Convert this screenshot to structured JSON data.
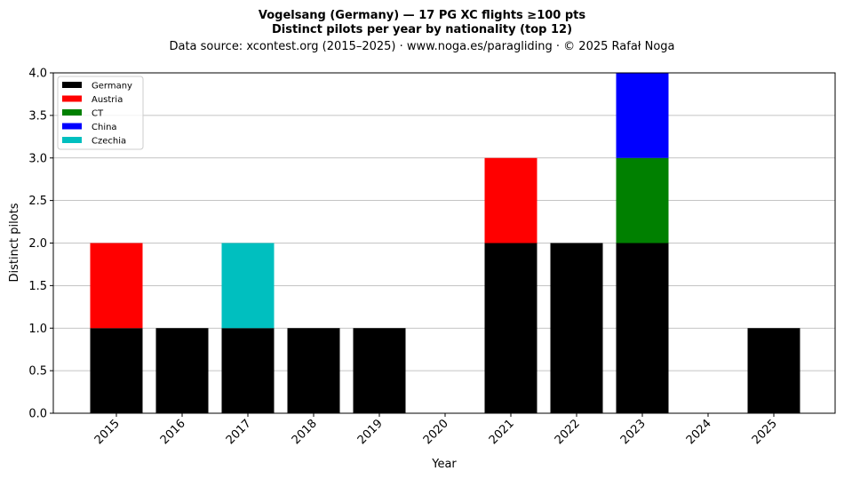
{
  "chart_data": {
    "type": "bar",
    "title_line1": "Vogelsang (Germany)  —  17 PG XC flights ≥100 pts",
    "title_line2": "Distinct pilots per year by nationality (top 12)",
    "subtitle": "Data source: xcontest.org (2015–2025)  ·  www.noga.es/paragliding  ·  © 2025 Rafał Noga",
    "xlabel": "Year",
    "ylabel": "Distinct pilots",
    "ylim": [
      0,
      4
    ],
    "yticks": [
      "0.0",
      "0.5",
      "1.0",
      "1.5",
      "2.0",
      "2.5",
      "3.0",
      "3.5",
      "4.0"
    ],
    "grid": "horizontal",
    "legend_position": "top-left",
    "categories": [
      "2015",
      "2016",
      "2017",
      "2018",
      "2019",
      "2020",
      "2021",
      "2022",
      "2023",
      "2024",
      "2025"
    ],
    "series": [
      {
        "name": "Germany",
        "color": "#000000",
        "values": [
          1,
          1,
          1,
          1,
          1,
          0,
          2,
          2,
          2,
          0,
          1
        ]
      },
      {
        "name": "Austria",
        "color": "#ff0000",
        "values": [
          1,
          0,
          0,
          0,
          0,
          0,
          1,
          0,
          0,
          0,
          0
        ]
      },
      {
        "name": "CT",
        "color": "#008000",
        "values": [
          0,
          0,
          0,
          0,
          0,
          0,
          0,
          0,
          1,
          0,
          0
        ]
      },
      {
        "name": "China",
        "color": "#0000ff",
        "values": [
          0,
          0,
          0,
          0,
          0,
          0,
          0,
          0,
          1,
          0,
          0
        ]
      },
      {
        "name": "Czechia",
        "color": "#00bfbf",
        "values": [
          0,
          0,
          1,
          0,
          0,
          0,
          0,
          0,
          0,
          0,
          0
        ]
      }
    ]
  }
}
